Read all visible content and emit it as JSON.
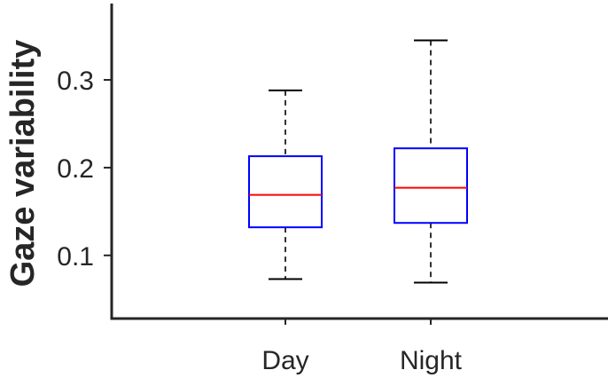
{
  "chart_data": {
    "type": "box",
    "title": "",
    "xlabel": "",
    "ylabel": "Gaze variability",
    "categories": [
      "Day",
      "Night"
    ],
    "yticks": [
      "0.1",
      "0.2",
      "0.3"
    ],
    "ylim": [
      0.028,
      0.387
    ],
    "grid": false,
    "boxes": [
      {
        "category": "Day",
        "whisker_low": 0.073,
        "q1": 0.132,
        "median": 0.169,
        "q3": 0.213,
        "whisker_high": 0.288
      },
      {
        "category": "Night",
        "whisker_low": 0.069,
        "q1": 0.137,
        "median": 0.177,
        "q3": 0.222,
        "whisker_high": 0.345
      }
    ],
    "colors": {
      "box": "#0000ff",
      "median": "#ff0000",
      "whisker": "#000000",
      "axis": "#262626"
    }
  }
}
